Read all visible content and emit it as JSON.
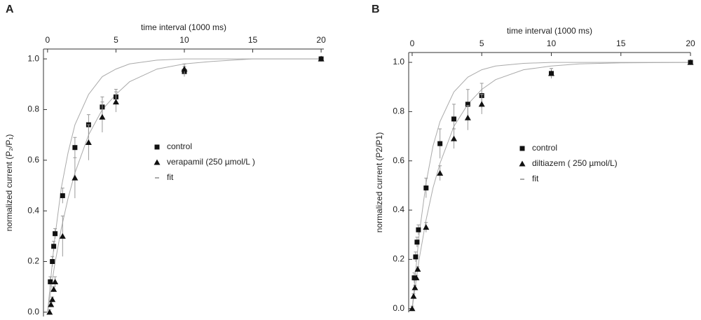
{
  "chart_data": [
    {
      "type": "scatter",
      "panel_label": "A",
      "xlabel": "time interval (1000 ms)",
      "ylabel": "normalized current (P₂/P₁)",
      "xlim": [
        -0.3,
        20.2
      ],
      "xticks": [
        0,
        5,
        10,
        15,
        20
      ],
      "ylim": [
        -0.017,
        1.039
      ],
      "yticks": [
        {
          "value": 0,
          "label": "0.0"
        },
        0.2,
        0.4,
        0.6,
        0.8,
        {
          "value": 1,
          "label": "1.0"
        }
      ],
      "series": [
        {
          "name": "control",
          "color": "#111111",
          "marker": "square",
          "x": [
            0.2,
            0.35,
            0.45,
            0.55,
            1.1,
            2,
            3,
            4,
            5,
            10,
            20
          ],
          "values": [
            0.12,
            0.2,
            0.26,
            0.31,
            0.46,
            0.65,
            0.74,
            0.81,
            0.85,
            0.95,
            1.0
          ],
          "errors": [
            0.02,
            0.02,
            0.02,
            0.02,
            0.03,
            0.04,
            0.04,
            0.04,
            0.03,
            0.02,
            0.01
          ]
        },
        {
          "name": "verapamil (250 µmol/L )",
          "color": "#111111",
          "marker": "triangle",
          "x": [
            0.15,
            0.25,
            0.35,
            0.45,
            0.55,
            1.1,
            2,
            3,
            4,
            5,
            10,
            20
          ],
          "values": [
            0.0,
            0.03,
            0.05,
            0.09,
            0.12,
            0.3,
            0.53,
            0.67,
            0.77,
            0.83,
            0.96,
            1.0
          ],
          "errors": [
            0.01,
            0.01,
            0.01,
            0.01,
            0.02,
            0.08,
            0.08,
            0.07,
            0.06,
            0.04,
            0.02,
            0.01
          ]
        }
      ],
      "fit": {
        "name": "fit",
        "color": "#aaaaaa",
        "x": [
          0,
          0.5,
          1,
          1.5,
          2,
          3,
          4,
          5,
          6,
          8,
          10,
          12,
          15,
          20
        ],
        "curves": [
          [
            0,
            0.28,
            0.49,
            0.63,
            0.74,
            0.86,
            0.93,
            0.96,
            0.98,
            0.995,
            1.0,
            1.0,
            1.0,
            1.0
          ],
          [
            0,
            0.18,
            0.33,
            0.45,
            0.55,
            0.7,
            0.8,
            0.86,
            0.91,
            0.96,
            0.98,
            0.99,
            1.0,
            1.0
          ]
        ]
      }
    },
    {
      "type": "scatter",
      "panel_label": "B",
      "xlabel": "time interval (1000 ms)",
      "ylabel": "normalized current (P2/P1)",
      "xlim": [
        -0.25,
        20
      ],
      "xticks": [
        0,
        5,
        10,
        15,
        20
      ],
      "ylim": [
        -0.015,
        1.04
      ],
      "yticks": [
        {
          "value": 0,
          "label": "0.0"
        },
        0.2,
        0.4,
        0.6,
        0.8,
        {
          "value": 1,
          "label": "1.0"
        }
      ],
      "series": [
        {
          "name": "control",
          "color": "#111111",
          "marker": "square",
          "x": [
            0.15,
            0.25,
            0.35,
            0.45,
            1,
            2,
            3,
            4,
            5,
            10,
            20
          ],
          "values": [
            0.125,
            0.21,
            0.27,
            0.32,
            0.49,
            0.67,
            0.77,
            0.83,
            0.865,
            0.955,
            1.0
          ],
          "errors": [
            0.02,
            0.02,
            0.02,
            0.02,
            0.04,
            0.06,
            0.06,
            0.06,
            0.05,
            0.02,
            0.01
          ]
        },
        {
          "name": "diltiazem ( 250 µmol/L)",
          "color": "#111111",
          "marker": "triangle",
          "x": [
            0.0,
            0.1,
            0.2,
            0.3,
            0.4,
            1,
            2,
            3,
            4,
            5,
            10,
            20
          ],
          "values": [
            0.0,
            0.05,
            0.085,
            0.125,
            0.16,
            0.33,
            0.55,
            0.69,
            0.775,
            0.83,
            0.955,
            1.0
          ],
          "errors": [
            0.01,
            0.01,
            0.01,
            0.01,
            0.01,
            0.02,
            0.03,
            0.04,
            0.05,
            0.04,
            0.02,
            0.01
          ]
        }
      ],
      "fit": {
        "name": "fit",
        "color": "#aaaaaa",
        "x": [
          0,
          0.5,
          1,
          1.5,
          2,
          3,
          4,
          5,
          6,
          8,
          10,
          12,
          15,
          20
        ],
        "curves": [
          [
            0,
            0.3,
            0.51,
            0.66,
            0.76,
            0.88,
            0.94,
            0.97,
            0.985,
            0.996,
            1.0,
            1.0,
            1.0,
            1.0
          ],
          [
            0,
            0.2,
            0.36,
            0.49,
            0.59,
            0.74,
            0.83,
            0.89,
            0.93,
            0.97,
            0.985,
            0.994,
            0.998,
            1.0
          ]
        ]
      }
    }
  ]
}
